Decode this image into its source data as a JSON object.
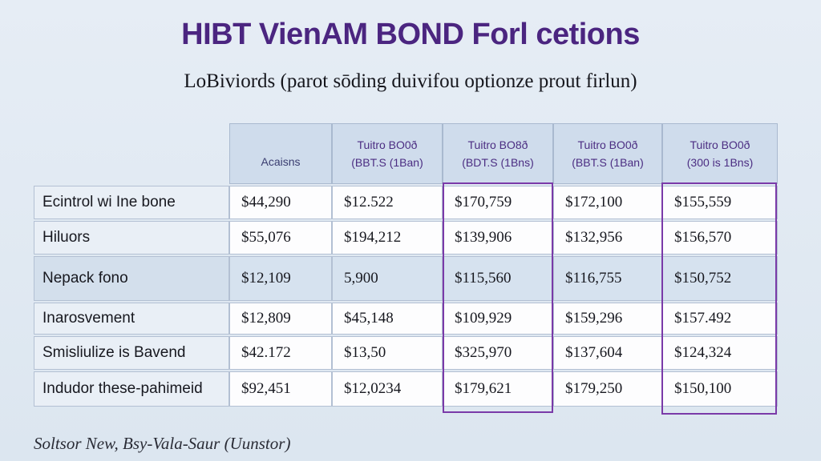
{
  "title": "HIBT VienAM BOND Forl cetions",
  "subtitle": "LoBiviords (parot sōding duivifou optionze prout firlun)",
  "footer": "Soltsor New, Bsy-Vala-Saur (Uunstor)",
  "table": {
    "headers": [
      {
        "line1": "Acaisns",
        "line2": ""
      },
      {
        "line1": "Tuitro BO0ð",
        "line2": "(BBT.S (1Ban)"
      },
      {
        "line1": "Tuitro BO8ð",
        "line2": "(BDT.S (1Bns)"
      },
      {
        "line1": "Tuitro BO0ð",
        "line2": "(BBT.S (1Ban)"
      },
      {
        "line1": "Tuitro BO0ð",
        "line2": "(300 is 1Bns)"
      }
    ],
    "rows": [
      {
        "label": "Ecintrol wi Ine bone",
        "values": [
          "$44,290",
          "$12.522",
          "$170,759",
          "$172,100",
          "$155,559"
        ]
      },
      {
        "label": "Hiluors",
        "values": [
          "$55,076",
          "$194,212",
          "$139,906",
          "$132,956",
          "$156,570"
        ]
      },
      {
        "label": "Nepack fono",
        "values": [
          "$12,109",
          "5,900",
          "$115,560",
          "$116,755",
          "$150,752"
        ]
      },
      {
        "label": "Inarosvement",
        "values": [
          "$12,809",
          "$45,148",
          "$109,929",
          "$159,296",
          "$157.492"
        ]
      },
      {
        "label": "Smisliulize is Bavend",
        "values": [
          "$42.172",
          "$13,50",
          "$325,970",
          "$137,604",
          "$124,324"
        ]
      },
      {
        "label": "Indudor these-pahimeid",
        "values": [
          "$92,451",
          "$12,0234",
          "$179,621",
          "$179,250",
          "$150,100"
        ]
      }
    ]
  }
}
